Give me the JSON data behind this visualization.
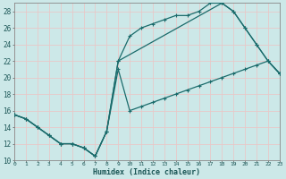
{
  "xlabel": "Humidex (Indice chaleur)",
  "background_color": "#cce8e8",
  "grid_color": "#e8c8c8",
  "line_color": "#1a6b6b",
  "xlim": [
    0,
    23
  ],
  "ylim": [
    10,
    29
  ],
  "yticks": [
    10,
    12,
    14,
    16,
    18,
    20,
    22,
    24,
    26,
    28
  ],
  "xticks": [
    0,
    1,
    2,
    3,
    4,
    5,
    6,
    7,
    8,
    9,
    10,
    11,
    12,
    13,
    14,
    15,
    16,
    17,
    18,
    19,
    20,
    21,
    22,
    23
  ],
  "line1_x": [
    0,
    1,
    2,
    3,
    4,
    5,
    6,
    7,
    8,
    9,
    10,
    11,
    12,
    13,
    14,
    15,
    16,
    17,
    18,
    19,
    20,
    21,
    22,
    23
  ],
  "line1_y": [
    15.5,
    15,
    14,
    13,
    12,
    12,
    11.5,
    10.5,
    13.5,
    22,
    25,
    26,
    26.5,
    27,
    27.5,
    27.5,
    28,
    29,
    29,
    28,
    26,
    24,
    22,
    20.5
  ],
  "line2_x": [
    0,
    1,
    2,
    3,
    4,
    5,
    6,
    7,
    8,
    9,
    10,
    11,
    12,
    13,
    14,
    15,
    16,
    17,
    18,
    19,
    20,
    21,
    22,
    23
  ],
  "line2_y": [
    15.5,
    15,
    14,
    13,
    12,
    12,
    11.5,
    10.5,
    13.5,
    21,
    16,
    16.5,
    17,
    17.5,
    18,
    18.5,
    19,
    19.5,
    20,
    20.5,
    21,
    21.5,
    22,
    20.5
  ],
  "line3_x": [
    0,
    1,
    2,
    3,
    4,
    5,
    6,
    7,
    8,
    9,
    18,
    19,
    20,
    21,
    22,
    23
  ],
  "line3_y": [
    15.5,
    15,
    14,
    13,
    12,
    12,
    11.5,
    10.5,
    13.5,
    22,
    29,
    28,
    26,
    24,
    22,
    20.5
  ]
}
